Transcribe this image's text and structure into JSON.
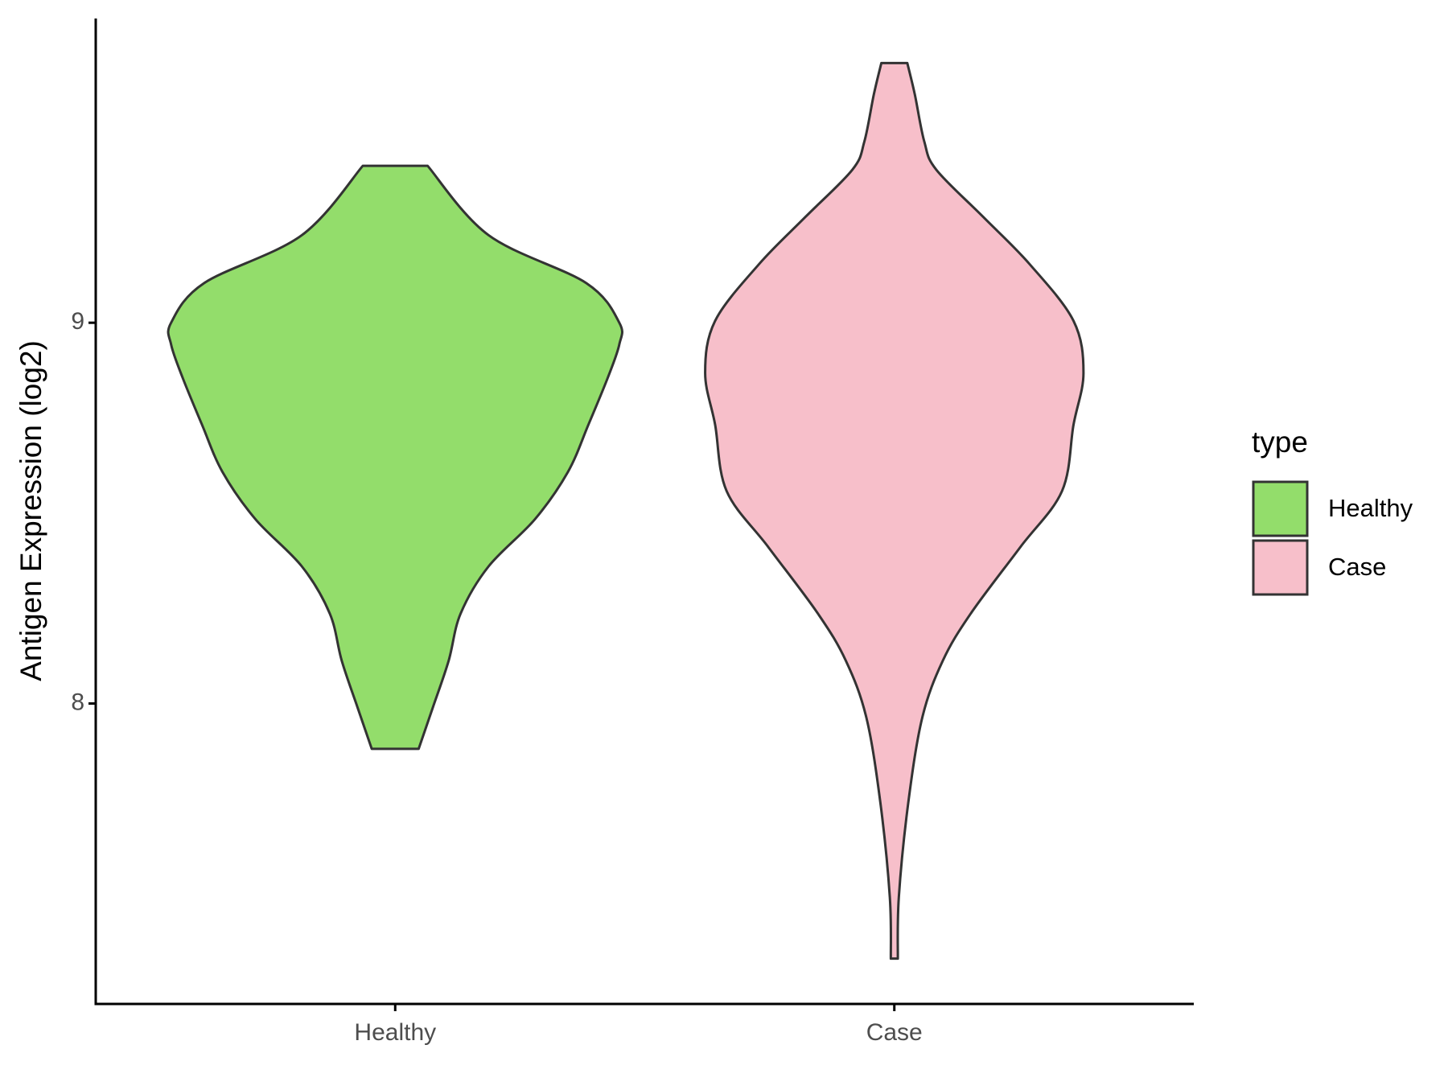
{
  "chart_data": {
    "type": "violin",
    "y_label": "Antigen Expression (log2)",
    "categories": [
      "Healthy",
      "Case"
    ],
    "ylim": [
      7.211,
      9.799
    ],
    "yticks": [
      8,
      9
    ],
    "legend_title": "type",
    "legend_position": "right",
    "series": [
      {
        "name": "Healthy",
        "color": "#93dd6b",
        "y": [
          9.412,
          9.23,
          9.104,
          9.0,
          8.943,
          8.856,
          8.732,
          8.608,
          8.484,
          8.36,
          8.236,
          8.112,
          7.988,
          7.881
        ],
        "width": [
          0.065,
          0.187,
          0.383,
          0.449,
          0.449,
          0.426,
          0.387,
          0.346,
          0.28,
          0.187,
          0.131,
          0.107,
          0.075,
          0.047
        ]
      },
      {
        "name": "Case",
        "color": "#f7bfca",
        "y": [
          9.682,
          9.6,
          9.476,
          9.402,
          9.278,
          9.154,
          9.005,
          8.868,
          8.732,
          8.558,
          8.41,
          8.236,
          8.112,
          7.963,
          7.74,
          7.491,
          7.33
        ],
        "width": [
          0.026,
          0.041,
          0.06,
          0.084,
          0.178,
          0.271,
          0.359,
          0.379,
          0.359,
          0.336,
          0.252,
          0.153,
          0.097,
          0.056,
          0.028,
          0.009,
          0.007
        ]
      }
    ]
  }
}
